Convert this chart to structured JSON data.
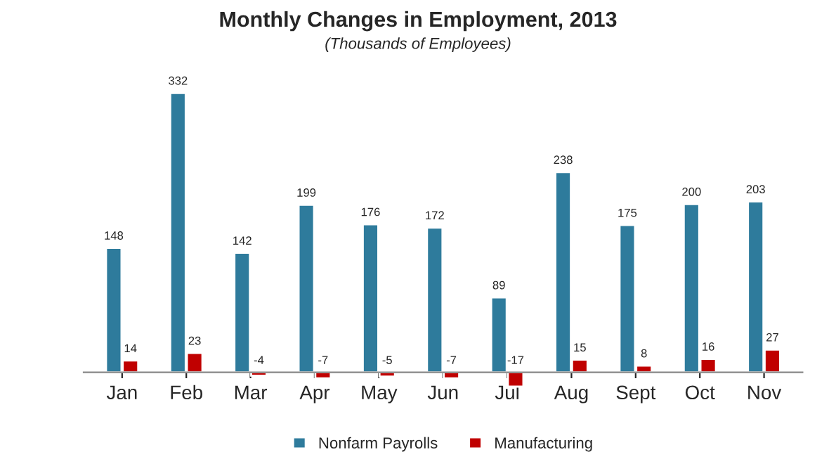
{
  "chart_data": {
    "type": "bar",
    "title": "Monthly Changes in Employment, 2013",
    "subtitle": "(Thousands of Employees)",
    "categories": [
      "Jan",
      "Feb",
      "Mar",
      "Apr",
      "May",
      "Jun",
      "Jul",
      "Aug",
      "Sept",
      "Oct",
      "Nov"
    ],
    "series": [
      {
        "name": "Nonfarm Payrolls",
        "color": "#2e7b9c",
        "values": [
          148,
          332,
          142,
          199,
          176,
          172,
          89,
          238,
          175,
          200,
          203
        ]
      },
      {
        "name": "Manufacturing",
        "color": "#c00000",
        "values": [
          14,
          23,
          -4,
          -7,
          -5,
          -7,
          -17,
          15,
          8,
          16,
          27
        ]
      }
    ],
    "data_labels": true,
    "legend": "bottom",
    "grid": false
  }
}
